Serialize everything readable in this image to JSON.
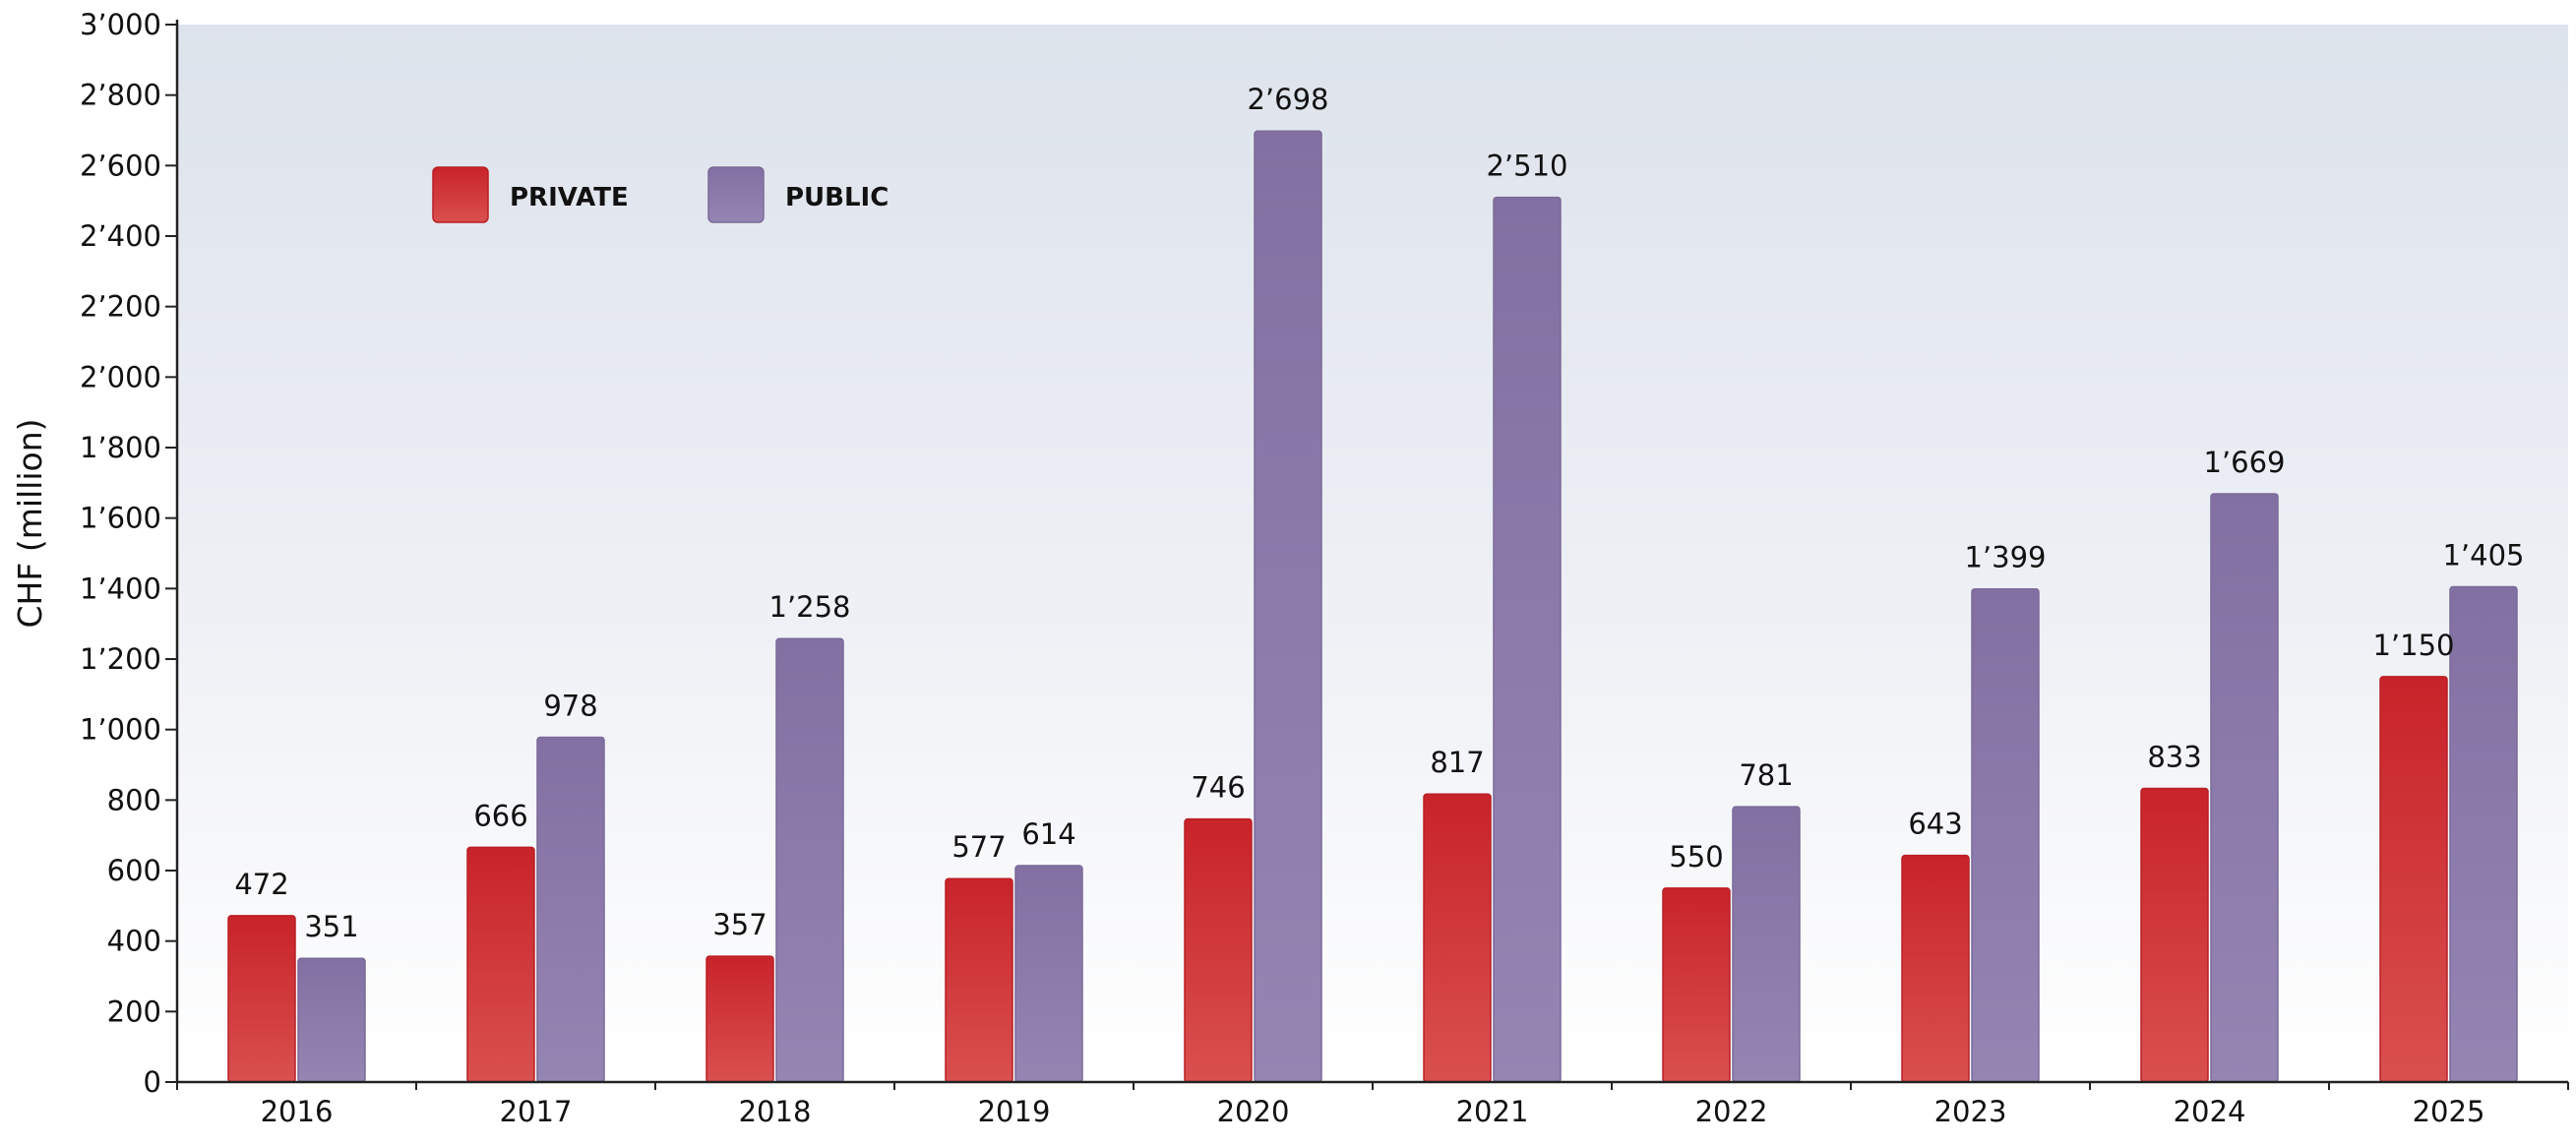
{
  "chart_data": {
    "type": "bar",
    "title": "",
    "xlabel": "",
    "ylabel": "CHF (million)",
    "ylim": [
      0,
      3000
    ],
    "ytick_step": 200,
    "ytick_labels": [
      "0",
      "200",
      "400",
      "600",
      "800",
      "1’000",
      "1’200",
      "1’400",
      "1’600",
      "1’800",
      "2’000",
      "2’200",
      "2’400",
      "2’600",
      "2’800",
      "3’000"
    ],
    "categories": [
      "2016",
      "2017",
      "2018",
      "2019",
      "2020",
      "2021",
      "2022",
      "2023",
      "2024",
      "2025"
    ],
    "series": [
      {
        "name": "PRIVATE",
        "color": "#cc2b2e",
        "values": [
          472,
          666,
          357,
          577,
          746,
          817,
          550,
          643,
          833,
          1150
        ],
        "labels": [
          "472",
          "666",
          "357",
          "577",
          "746",
          "817",
          "550",
          "643",
          "833",
          "1’150"
        ]
      },
      {
        "name": "PUBLIC",
        "color": "#8574a4",
        "values": [
          351,
          978,
          1258,
          614,
          2698,
          2510,
          781,
          1399,
          1669,
          1405
        ],
        "labels": [
          "351",
          "978",
          "1’258",
          "614",
          "2’698",
          "2’510",
          "781",
          "1’399",
          "1’669",
          "1’405"
        ]
      }
    ],
    "legend_position": "top-left",
    "grid": false,
    "background": "gradient light blue-grey to white"
  }
}
